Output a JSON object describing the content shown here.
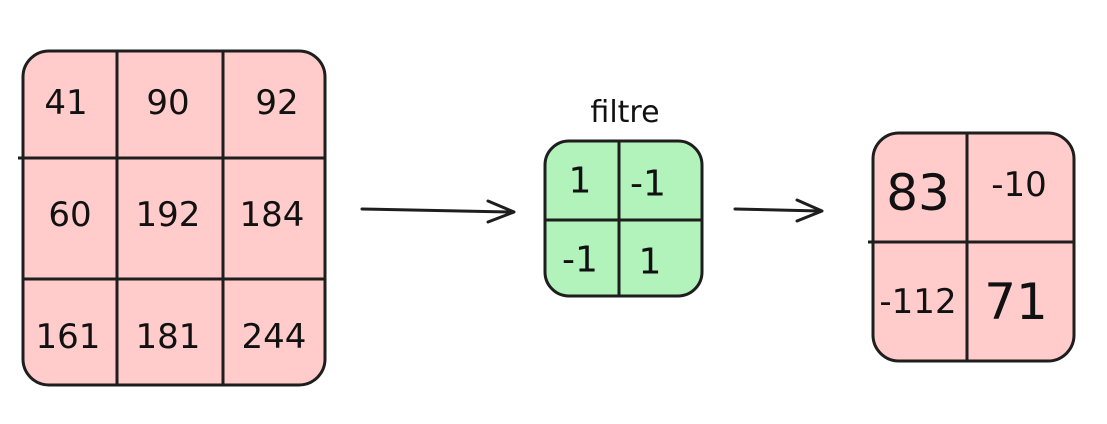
{
  "input_matrix": {
    "fill_color": "#ffcccb",
    "cells": [
      "41",
      "90",
      "92",
      "60",
      "192",
      "184",
      "161",
      "181",
      "244"
    ]
  },
  "filter": {
    "label": "filtre",
    "fill_color": "#b2f2bb",
    "cells": [
      "1",
      "-1",
      "-1",
      "1"
    ]
  },
  "output_matrix": {
    "fill_color": "#ffcccb",
    "cells": [
      "83",
      "-10",
      "-112",
      "71"
    ]
  },
  "arrows": [
    "input-to-filter",
    "filter-to-output"
  ]
}
